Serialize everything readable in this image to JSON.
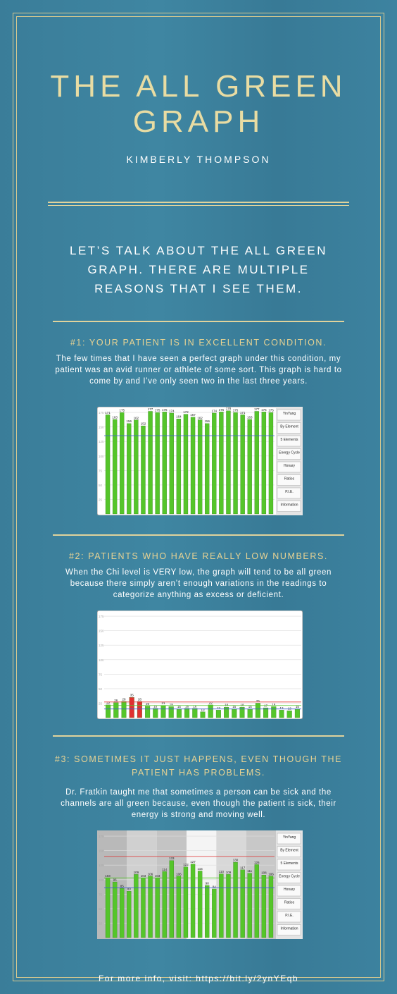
{
  "header": {
    "title": "THE ALL GREEN GRAPH",
    "author": "KIMBERLY THOMPSON"
  },
  "intro": "LET’S TALK ABOUT THE ALL GREEN GRAPH. THERE ARE MULTIPLE REASONS THAT I SEE THEM.",
  "sections": [
    {
      "heading": "#1: YOUR PATIENT IS IN EXCELLENT CONDITION.",
      "body": "The few times that I have seen a perfect graph under this condition, my patient was an avid runner or athlete of some sort. This graph is hard to come by and I’ve only seen two in the last three years.",
      "chart": {
        "type": "bar",
        "color": "#55c52a",
        "ylim": [
          0,
          180
        ],
        "yticks": [
          25,
          50,
          75,
          100,
          125,
          150,
          175
        ],
        "values": [
          171,
          163,
          175,
          156,
          162,
          152,
          177,
          175,
          176,
          174,
          164,
          172,
          167,
          162,
          156,
          174,
          176,
          178,
          175,
          171,
          163,
          177,
          176,
          175
        ],
        "reference_lines": [
          {
            "value": 135,
            "color": "#3d5fd0"
          }
        ],
        "panel": [
          "YinYang",
          "By Element",
          "5 Elements",
          "Energy Cycle",
          "Honary",
          "Ratios",
          "P.I.E.",
          "Information"
        ]
      }
    },
    {
      "heading": "#2: PATIENTS WHO HAVE REALLY LOW NUMBERS.",
      "body": "When the Chi level is VERY low, the graph will tend to be all green because there simply aren’t enough variations in the readings to categorize anything as excess or deficient.",
      "chart": {
        "type": "bar",
        "ylim": [
          0,
          180
        ],
        "yticks": [
          25,
          50,
          75,
          100,
          125,
          150,
          175
        ],
        "values": [
          22,
          26,
          28,
          35,
          28,
          20,
          16,
          21,
          19,
          15,
          16,
          16,
          10,
          22,
          13,
          18,
          15,
          18,
          15,
          25,
          17,
          19,
          13,
          12,
          15
        ],
        "bar_colors": [
          "#55c52a",
          "#55c52a",
          "#55c52a",
          "#e03030",
          "#e03030",
          "#55c52a",
          "#55c52a",
          "#55c52a",
          "#55c52a",
          "#55c52a",
          "#55c52a",
          "#55c52a",
          "#55c52a",
          "#55c52a",
          "#55c52a",
          "#55c52a",
          "#55c52a",
          "#55c52a",
          "#55c52a",
          "#55c52a",
          "#55c52a",
          "#55c52a",
          "#55c52a",
          "#55c52a",
          "#55c52a"
        ],
        "reference_lines": [
          {
            "value": 27,
            "color": "#e03030"
          },
          {
            "value": 21,
            "color": "#55c52a"
          },
          {
            "value": 15,
            "color": "#3d5fd0"
          }
        ]
      }
    },
    {
      "heading": "#3: SOMETIMES IT JUST HAPPENS, EVEN THOUGH THE PATIENT HAS PROBLEMS.",
      "body": "Dr. Fratkin taught me that sometimes a person can be sick and the channels are all green because, even though the patient is sick, their energy is strong and moving well.",
      "chart": {
        "type": "bar",
        "color": "#55c52a",
        "ylim": [
          0,
          180
        ],
        "yticks": [
          25,
          50,
          75,
          100,
          125,
          150,
          175
        ],
        "values": [
          103,
          96,
          85,
          80,
          109,
          103,
          106,
          103,
          114,
          133,
          106,
          122,
          127,
          115,
          90,
          84,
          110,
          109,
          130,
          117,
          111,
          126,
          108,
          106
        ],
        "reference_lines": [
          {
            "value": 140,
            "color": "#e03030"
          },
          {
            "value": 103,
            "color": "#55c52a"
          },
          {
            "value": 86,
            "color": "#3d5fd0"
          }
        ],
        "panel": [
          "YinYang",
          "By Element",
          "5 Elements",
          "Energy Cycle",
          "Honary",
          "Ratios",
          "P.I.E.",
          "Information"
        ]
      }
    }
  ],
  "footer": "For more info, visit: https://bit.ly/2ynYEqb"
}
